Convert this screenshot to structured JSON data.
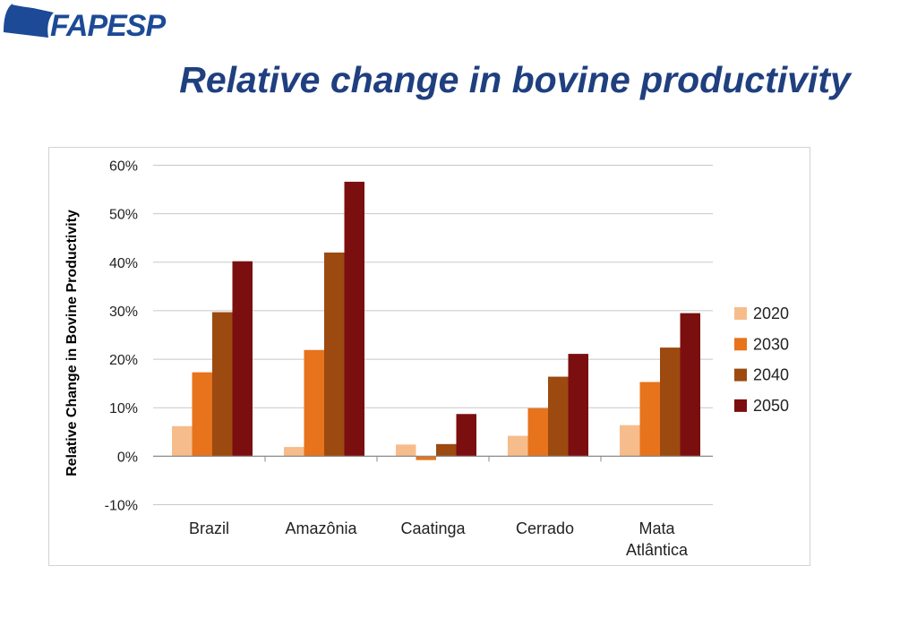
{
  "header": {
    "logo_text": "FAPESP",
    "title": "Relative change in bovine productivity"
  },
  "colors": {
    "title": "#1f3f7f",
    "logo": "#1c4a96"
  },
  "chart_data": {
    "type": "bar",
    "title": "",
    "xlabel": "",
    "ylabel": "Relative Change in Bovine Productivity",
    "ylim": [
      -10,
      60
    ],
    "y_ticks": [
      -10,
      0,
      10,
      20,
      30,
      40,
      50,
      60
    ],
    "y_tick_labels": [
      "-10%",
      "0%",
      "10%",
      "20%",
      "30%",
      "40%",
      "50%",
      "60%"
    ],
    "grid": true,
    "legend_position": "right",
    "categories": [
      "Brazil",
      "Amazônia",
      "Caatinga",
      "Cerrado",
      "Mata Atlântica"
    ],
    "category_labels": [
      [
        "Brazil"
      ],
      [
        "Amazônia"
      ],
      [
        "Caatinga"
      ],
      [
        "Cerrado"
      ],
      [
        "Mata",
        "Atlântica"
      ]
    ],
    "series": [
      {
        "name": "2020",
        "color": "#f7bc8b",
        "values": [
          6.2,
          1.9,
          2.4,
          4.2,
          6.4
        ]
      },
      {
        "name": "2030",
        "color": "#e7731c",
        "values": [
          17.3,
          21.9,
          -0.8,
          9.9,
          15.3
        ]
      },
      {
        "name": "2040",
        "color": "#9c4a10",
        "values": [
          29.7,
          42.0,
          2.5,
          16.4,
          22.4
        ]
      },
      {
        "name": "2050",
        "color": "#7b0f0f",
        "values": [
          40.2,
          56.6,
          8.7,
          21.1,
          29.5
        ]
      }
    ]
  }
}
